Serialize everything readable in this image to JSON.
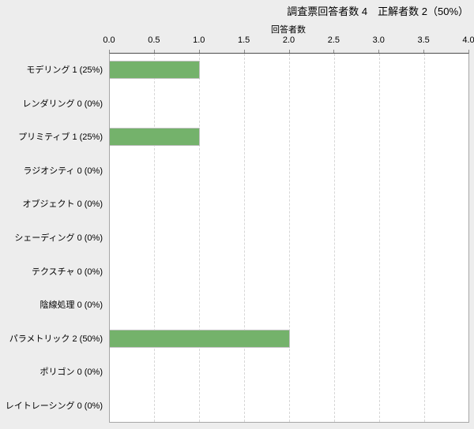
{
  "title": "調査票回答者数 4　正解者数 2（50%）",
  "chart_data": {
    "type": "bar",
    "orientation": "horizontal",
    "title": "調査票回答者数 4　正解者数 2（50%）",
    "xlabel": "回答者数",
    "ylabel": "",
    "xlim": [
      0,
      4
    ],
    "xtick_values": [
      0,
      0.5,
      1,
      1.5,
      2,
      2.5,
      3,
      3.5,
      4
    ],
    "xtick_labels": [
      "0.0",
      "0.5",
      "1.0",
      "1.5",
      "2.0",
      "2.5",
      "3.0",
      "3.5",
      "4.0"
    ],
    "grid": "dashed-vertical",
    "legend": "none",
    "bar_color": "#74b26b",
    "bar_border_color": "#c2c2c2",
    "categories": [
      "モデリング 1 (25%)",
      "レンダリング 0 (0%)",
      "プリミティブ 1 (25%)",
      "ラジオシティ 0 (0%)",
      "オブジェクト 0 (0%)",
      "シェーディング 0 (0%)",
      "テクスチャ 0 (0%)",
      "陰線処理 0 (0%)",
      "パラメトリック 2 (50%)",
      "ポリゴン 0 (0%)",
      "レイトレーシング 0 (0%)"
    ],
    "values": [
      1,
      0,
      1,
      0,
      0,
      0,
      0,
      0,
      2,
      0,
      0
    ]
  }
}
